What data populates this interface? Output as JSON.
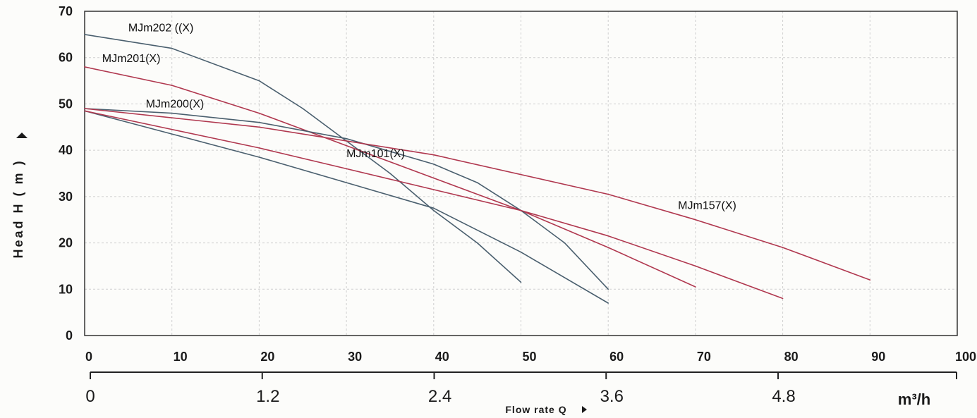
{
  "chart_data": {
    "type": "line",
    "xlabel": "Flow rate Q",
    "ylabel": "Head H ( m )",
    "xlim": [
      0,
      100
    ],
    "ylim": [
      0,
      70
    ],
    "x_ticks": [
      0,
      10,
      20,
      30,
      40,
      50,
      60,
      70,
      80,
      90,
      100
    ],
    "y_ticks": [
      0,
      10,
      20,
      30,
      40,
      50,
      60,
      70
    ],
    "x2_unit": "m³/h",
    "x2_ticks": [
      "0",
      "1.2",
      "2.4",
      "3.6",
      "4.8"
    ],
    "grid": true,
    "series": [
      {
        "name": "MJm202 ((X)",
        "color": "#4a5f6e",
        "x": [
          0,
          10,
          20,
          25,
          30,
          35,
          40,
          45,
          50
        ],
        "y": [
          65,
          62,
          55,
          49,
          42,
          35,
          27,
          20,
          11.5
        ]
      },
      {
        "name": "MJm201(X)",
        "color": "#b0384f",
        "x": [
          0,
          10,
          20,
          30,
          40,
          50,
          60,
          70
        ],
        "y": [
          58,
          54,
          48,
          41,
          34,
          27,
          19,
          10.5
        ]
      },
      {
        "name": "MJm200(X)",
        "color": "#4a5f6e",
        "x": [
          0,
          10,
          20,
          30,
          40,
          45,
          50,
          55,
          60
        ],
        "y": [
          49,
          48,
          46,
          42.5,
          37,
          33,
          27,
          20,
          10
        ]
      },
      {
        "name": "MJm157(X)",
        "color": "#b0384f",
        "x": [
          0,
          20,
          40,
          60,
          70,
          80,
          90
        ],
        "y": [
          49,
          45,
          39,
          30.5,
          25,
          19,
          12
        ]
      },
      {
        "name": "MJm101(X)",
        "color": "#4a5f6e",
        "x": [
          0,
          10,
          20,
          30,
          40,
          50,
          60
        ],
        "y": [
          48.5,
          43.5,
          38.5,
          33,
          27.5,
          18,
          7
        ]
      },
      {
        "name": "",
        "color": "#b0384f",
        "x": [
          0,
          10,
          20,
          30,
          40,
          50,
          60,
          70,
          80
        ],
        "y": [
          48.5,
          44.5,
          40.5,
          36,
          31.5,
          27,
          21.5,
          15,
          8
        ]
      }
    ]
  }
}
